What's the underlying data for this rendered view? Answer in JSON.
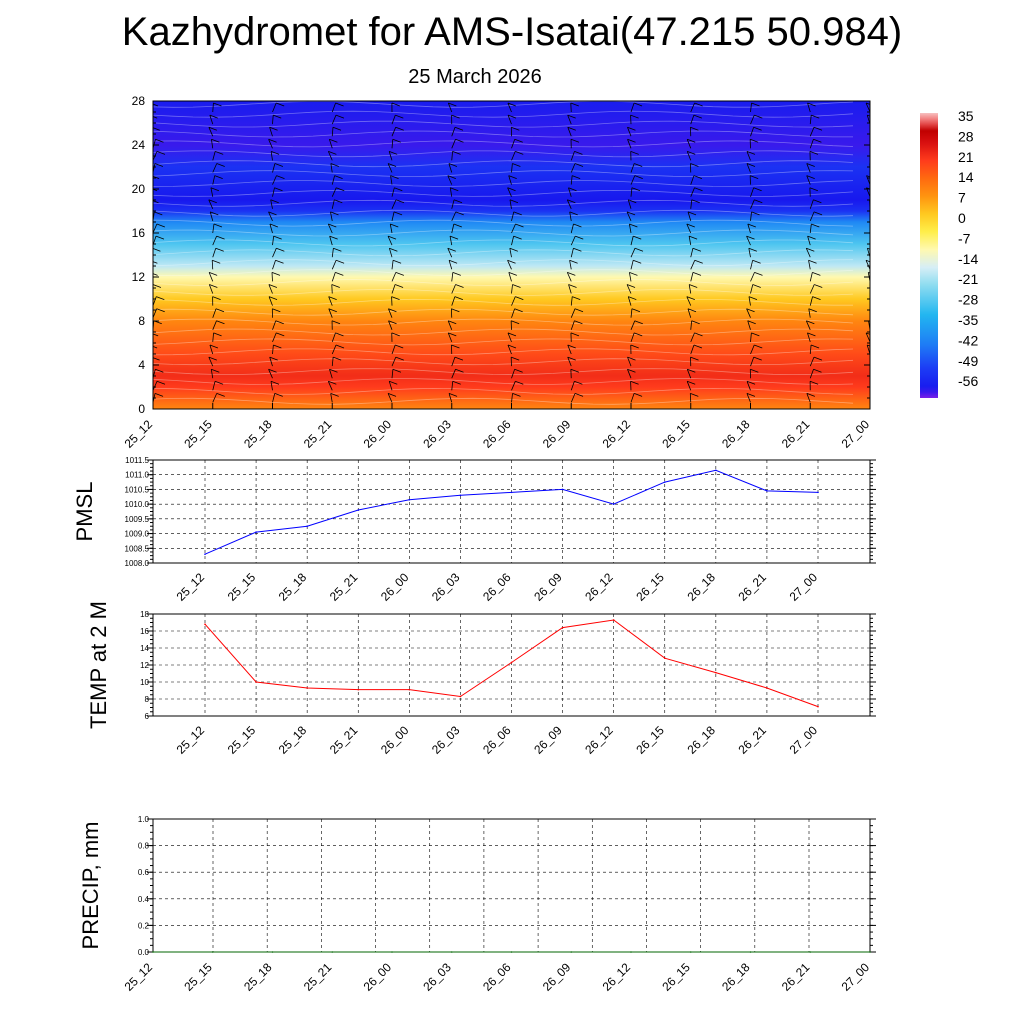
{
  "header": {
    "title": "Kazhydromet for AMS-Isatai(47.215 50.984)",
    "subtitle": "25 March 2026"
  },
  "colors": {
    "pmsl": "#0000ff",
    "temp": "#ff0000",
    "precip": "#006400",
    "grid": "#000000"
  },
  "chart_data": [
    {
      "type": "heatmap",
      "name": "vertical temperature cross-section",
      "x_ticks": [
        "25_12",
        "25_15",
        "25_18",
        "25_21",
        "26_00",
        "26_03",
        "26_06",
        "26_09",
        "26_12",
        "26_15",
        "26_18",
        "26_21",
        "27_00"
      ],
      "y_ticks": [
        0,
        4,
        8,
        12,
        16,
        20,
        24,
        28
      ],
      "ylim": [
        0,
        28
      ],
      "colorbar_labels": [
        "35",
        "28",
        "21",
        "14",
        "7",
        "0",
        "-7",
        "-14",
        "-21",
        "-28",
        "-35",
        "-42",
        "-49",
        "-56"
      ],
      "colorbar_range": [
        -60,
        36
      ],
      "temperature_profile": [
        {
          "level": 0,
          "value": 10
        },
        {
          "level": 2,
          "value": 20
        },
        {
          "level": 3,
          "value": 22
        },
        {
          "level": 5,
          "value": 18
        },
        {
          "level": 8,
          "value": 10
        },
        {
          "level": 10,
          "value": 2
        },
        {
          "level": 12,
          "value": -10
        },
        {
          "level": 13,
          "value": -18
        },
        {
          "level": 15,
          "value": -28
        },
        {
          "level": 17,
          "value": -40
        },
        {
          "level": 18,
          "value": -52
        },
        {
          "level": 19,
          "value": -57
        },
        {
          "level": 22,
          "value": -52
        },
        {
          "level": 24,
          "value": -58
        },
        {
          "level": 28,
          "value": -56
        }
      ],
      "wind_barbs": true
    },
    {
      "type": "line",
      "x": [
        "25_12",
        "25_15",
        "25_18",
        "25_21",
        "26_00",
        "26_03",
        "26_06",
        "26_09",
        "26_12",
        "26_15",
        "26_18",
        "26_21",
        "27_00"
      ],
      "y_ticks": [
        "1008.0",
        "1008.5",
        "1009.0",
        "1009.5",
        "1010.0",
        "1010.5",
        "1011.0",
        "1011.5"
      ],
      "ylim": [
        1008.0,
        1011.5
      ],
      "ylabel": "PMSL",
      "series": [
        {
          "values": [
            1008.3,
            1009.05,
            1009.25,
            1009.8,
            1010.15,
            1010.3,
            1010.4,
            1010.5,
            1010.0,
            1010.75,
            1011.15,
            1010.45,
            1010.4
          ]
        }
      ]
    },
    {
      "type": "line",
      "x": [
        "25_12",
        "25_15",
        "25_18",
        "25_21",
        "26_00",
        "26_03",
        "26_06",
        "26_09",
        "26_12",
        "26_15",
        "26_18",
        "26_21",
        "27_00"
      ],
      "y_ticks": [
        "6",
        "8",
        "10",
        "12",
        "14",
        "16",
        "18"
      ],
      "ylim": [
        6,
        18
      ],
      "ylabel": "TEMP at 2 M",
      "series": [
        {
          "values": [
            16.8,
            10.0,
            9.3,
            9.1,
            9.1,
            8.3,
            12.3,
            16.4,
            17.3,
            12.8,
            11.1,
            9.3,
            7.1
          ]
        }
      ]
    },
    {
      "type": "line",
      "x": [
        "25_12",
        "25_15",
        "25_18",
        "25_21",
        "26_00",
        "26_03",
        "26_06",
        "26_09",
        "26_12",
        "26_15",
        "26_18",
        "26_21",
        "27_00"
      ],
      "y_ticks": [
        "0.0",
        "0.2",
        "0.4",
        "0.6",
        "0.8",
        "1.0"
      ],
      "ylim": [
        0,
        1
      ],
      "ylabel": "PRECIP, mm",
      "series": [
        {
          "values": [
            0,
            0,
            0,
            0,
            0,
            0,
            0,
            0,
            0,
            0,
            0,
            0,
            0
          ]
        }
      ]
    }
  ]
}
